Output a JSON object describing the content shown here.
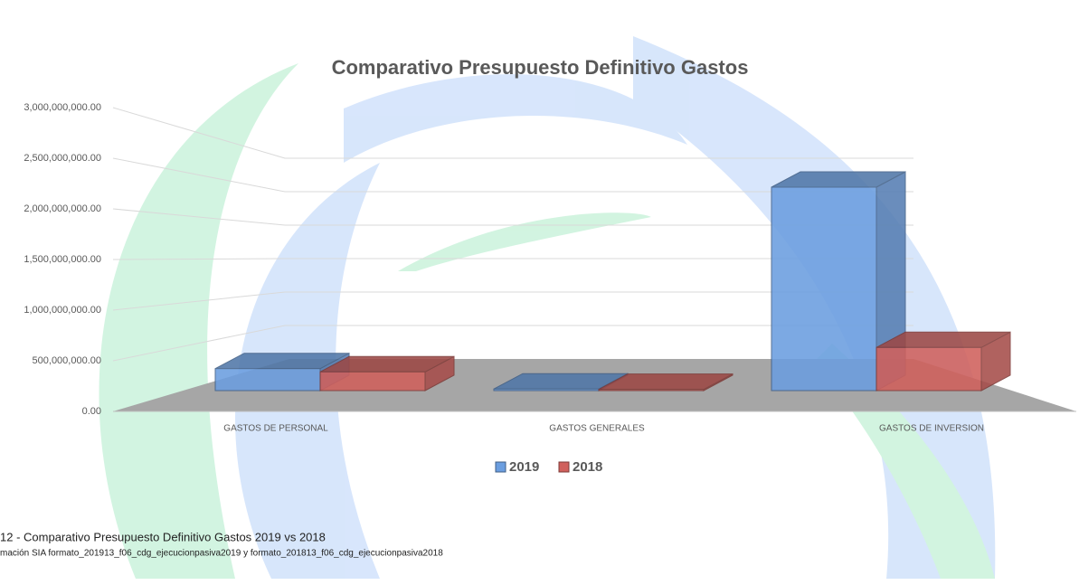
{
  "chart_data": {
    "type": "bar3d",
    "title": "Comparativo Presupuesto Definitivo Gastos",
    "categories": [
      "GASTOS DE PERSONAL",
      "GASTOS GENERALES",
      "GASTOS DE INVERSION"
    ],
    "series": [
      {
        "name": "2019",
        "color": "#6b9ee0",
        "values": [
          270000000,
          20000000,
          2500000000
        ]
      },
      {
        "name": "2018",
        "color": "#d0605c",
        "values": [
          230000000,
          15000000,
          530000000
        ]
      }
    ],
    "ylim": [
      0,
      3000000000
    ],
    "yticks": [
      {
        "value": 0,
        "label": "0.00"
      },
      {
        "value": 500000000,
        "label": "500,000,000.00"
      },
      {
        "value": 1000000000,
        "label": "1,000,000,000.00"
      },
      {
        "value": 1500000000,
        "label": "1,500,000,000.00"
      },
      {
        "value": 2000000000,
        "label": "2,000,000,000.00"
      },
      {
        "value": 2500000000,
        "label": "2,500,000,000.00"
      },
      {
        "value": 3000000000,
        "label": "3,000,000,000.00"
      }
    ],
    "grid": true,
    "legend": "bottom",
    "caption": "12 - Comparativo Presupuesto Definitivo Gastos 2019 vs 2018",
    "source": "mación SIA formato_201913_f06_cdg_ejecucionpasiva2019 y formato_201813_f06_cdg_ejecucionpasiva2018"
  }
}
